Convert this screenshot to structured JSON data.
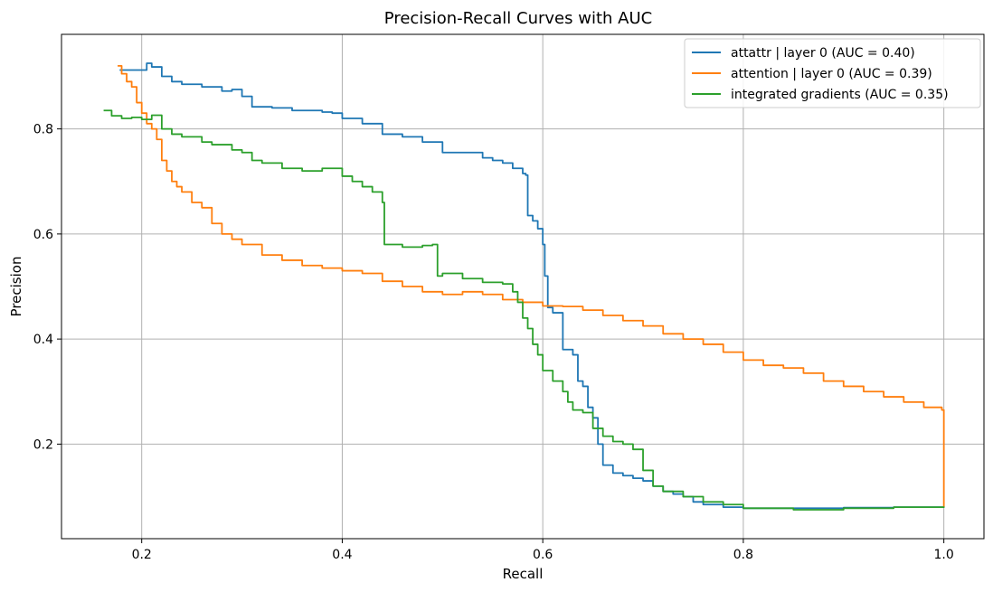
{
  "chart_data": {
    "type": "line",
    "title": "Precision-Recall Curves with AUC",
    "xlabel": "Recall",
    "ylabel": "Precision",
    "xlim": [
      0.12,
      1.04
    ],
    "ylim": [
      0.02,
      0.98
    ],
    "xticks": [
      0.2,
      0.4,
      0.6,
      0.8,
      1.0
    ],
    "xtick_labels": [
      "0.2",
      "0.4",
      "0.6",
      "0.8",
      "1.0"
    ],
    "yticks": [
      0.2,
      0.4,
      0.6,
      0.8
    ],
    "ytick_labels": [
      "0.2",
      "0.4",
      "0.6",
      "0.8"
    ],
    "grid": true,
    "legend_position": "top-right",
    "series": [
      {
        "name": "attattr | layer 0 (AUC = 0.40)",
        "color": "#1f77b4",
        "x": [
          0.178,
          0.205,
          0.21,
          0.22,
          0.23,
          0.24,
          0.26,
          0.28,
          0.29,
          0.3,
          0.31,
          0.33,
          0.35,
          0.37,
          0.38,
          0.39,
          0.4,
          0.42,
          0.44,
          0.46,
          0.48,
          0.5,
          0.52,
          0.54,
          0.55,
          0.56,
          0.57,
          0.58,
          0.583,
          0.585,
          0.59,
          0.595,
          0.6,
          0.602,
          0.605,
          0.61,
          0.62,
          0.63,
          0.635,
          0.64,
          0.645,
          0.65,
          0.655,
          0.66,
          0.67,
          0.68,
          0.69,
          0.7,
          0.71,
          0.72,
          0.73,
          0.74,
          0.75,
          0.76,
          0.78,
          0.8,
          0.85,
          0.9,
          0.95,
          1.0
        ],
        "y": [
          0.912,
          0.925,
          0.918,
          0.9,
          0.89,
          0.885,
          0.88,
          0.872,
          0.875,
          0.862,
          0.842,
          0.84,
          0.835,
          0.835,
          0.832,
          0.83,
          0.82,
          0.81,
          0.79,
          0.785,
          0.775,
          0.755,
          0.755,
          0.745,
          0.74,
          0.735,
          0.725,
          0.715,
          0.712,
          0.635,
          0.625,
          0.61,
          0.58,
          0.52,
          0.46,
          0.45,
          0.38,
          0.37,
          0.32,
          0.31,
          0.27,
          0.25,
          0.2,
          0.16,
          0.145,
          0.14,
          0.135,
          0.13,
          0.12,
          0.11,
          0.105,
          0.1,
          0.09,
          0.085,
          0.08,
          0.078,
          0.078,
          0.079,
          0.08,
          0.081
        ]
      },
      {
        "name": "attention | layer 0 (AUC = 0.39)",
        "color": "#ff7f0e",
        "x": [
          0.176,
          0.18,
          0.185,
          0.19,
          0.195,
          0.2,
          0.205,
          0.21,
          0.215,
          0.22,
          0.225,
          0.23,
          0.235,
          0.24,
          0.25,
          0.26,
          0.27,
          0.28,
          0.29,
          0.3,
          0.32,
          0.34,
          0.36,
          0.38,
          0.4,
          0.42,
          0.44,
          0.46,
          0.48,
          0.5,
          0.52,
          0.54,
          0.56,
          0.58,
          0.6,
          0.62,
          0.64,
          0.66,
          0.68,
          0.7,
          0.72,
          0.74,
          0.76,
          0.78,
          0.8,
          0.82,
          0.84,
          0.86,
          0.88,
          0.9,
          0.92,
          0.94,
          0.96,
          0.98,
          0.998,
          1.0,
          1.0
        ],
        "y": [
          0.92,
          0.905,
          0.89,
          0.88,
          0.85,
          0.83,
          0.81,
          0.8,
          0.78,
          0.74,
          0.72,
          0.7,
          0.69,
          0.68,
          0.66,
          0.65,
          0.62,
          0.6,
          0.59,
          0.58,
          0.56,
          0.55,
          0.54,
          0.535,
          0.53,
          0.525,
          0.51,
          0.5,
          0.49,
          0.485,
          0.49,
          0.485,
          0.475,
          0.47,
          0.463,
          0.462,
          0.455,
          0.445,
          0.435,
          0.425,
          0.41,
          0.4,
          0.39,
          0.375,
          0.36,
          0.35,
          0.345,
          0.335,
          0.32,
          0.31,
          0.3,
          0.29,
          0.28,
          0.27,
          0.265,
          0.26,
          0.08
        ]
      },
      {
        "name": "integrated gradients (AUC = 0.35)",
        "color": "#2ca02c",
        "x": [
          0.162,
          0.17,
          0.18,
          0.19,
          0.2,
          0.21,
          0.22,
          0.23,
          0.24,
          0.26,
          0.27,
          0.29,
          0.3,
          0.31,
          0.32,
          0.34,
          0.36,
          0.38,
          0.4,
          0.41,
          0.42,
          0.43,
          0.44,
          0.442,
          0.46,
          0.48,
          0.49,
          0.495,
          0.5,
          0.52,
          0.54,
          0.56,
          0.57,
          0.575,
          0.58,
          0.585,
          0.59,
          0.595,
          0.6,
          0.61,
          0.62,
          0.625,
          0.63,
          0.64,
          0.65,
          0.66,
          0.67,
          0.68,
          0.69,
          0.7,
          0.71,
          0.72,
          0.74,
          0.76,
          0.78,
          0.8,
          0.85,
          0.9,
          0.95,
          1.0
        ],
        "y": [
          0.835,
          0.825,
          0.82,
          0.822,
          0.818,
          0.826,
          0.8,
          0.79,
          0.785,
          0.775,
          0.77,
          0.76,
          0.755,
          0.74,
          0.735,
          0.725,
          0.72,
          0.725,
          0.71,
          0.7,
          0.69,
          0.68,
          0.66,
          0.58,
          0.575,
          0.578,
          0.58,
          0.52,
          0.525,
          0.515,
          0.508,
          0.505,
          0.49,
          0.47,
          0.44,
          0.42,
          0.39,
          0.37,
          0.34,
          0.32,
          0.3,
          0.28,
          0.265,
          0.26,
          0.23,
          0.215,
          0.205,
          0.2,
          0.19,
          0.15,
          0.12,
          0.11,
          0.1,
          0.09,
          0.085,
          0.078,
          0.075,
          0.078,
          0.08,
          0.081
        ]
      }
    ]
  }
}
